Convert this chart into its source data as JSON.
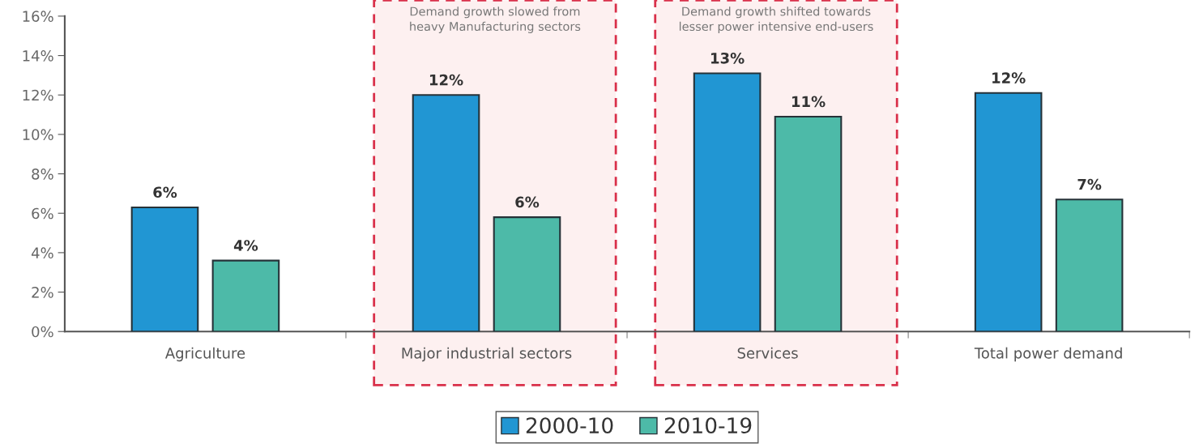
{
  "chart_data": {
    "type": "bar",
    "categories": [
      "Agriculture",
      "Major industrial sectors",
      "Services",
      "Total power demand"
    ],
    "series": [
      {
        "name": "2000-10",
        "color": "#2196d3",
        "values": [
          6.3,
          12.0,
          13.1,
          12.1
        ],
        "value_labels": [
          "6%",
          "12%",
          "13%",
          "12%"
        ]
      },
      {
        "name": "2010-19",
        "color": "#4dbaa8",
        "values": [
          3.6,
          5.8,
          10.9,
          6.7
        ],
        "value_labels": [
          "4%",
          "6%",
          "11%",
          "7%"
        ]
      }
    ],
    "ylim": [
      0,
      16
    ],
    "yticks": [
      {
        "value": 0,
        "label": "0%"
      },
      {
        "value": 2,
        "label": "2%"
      },
      {
        "value": 4,
        "label": "4%"
      },
      {
        "value": 6,
        "label": "6%"
      },
      {
        "value": 8,
        "label": "8%"
      },
      {
        "value": 10,
        "label": "10%"
      },
      {
        "value": 12,
        "label": "12%"
      },
      {
        "value": 14,
        "label": "14%"
      },
      {
        "value": 16,
        "label": "16%"
      }
    ],
    "bands": [
      {
        "axis": "x",
        "from": "Major industrial sectors",
        "to": "Major industrial sectors",
        "label": "Demand growth slowed from\nheavy Manufacturing sectors",
        "color": "#d9304a"
      },
      {
        "axis": "x",
        "from": "Services",
        "to": "Services",
        "label": "Demand growth shifted towards\nlesser power intensive end-users",
        "color": "#d9304a"
      }
    ],
    "grid": false,
    "legend": "bottom"
  }
}
